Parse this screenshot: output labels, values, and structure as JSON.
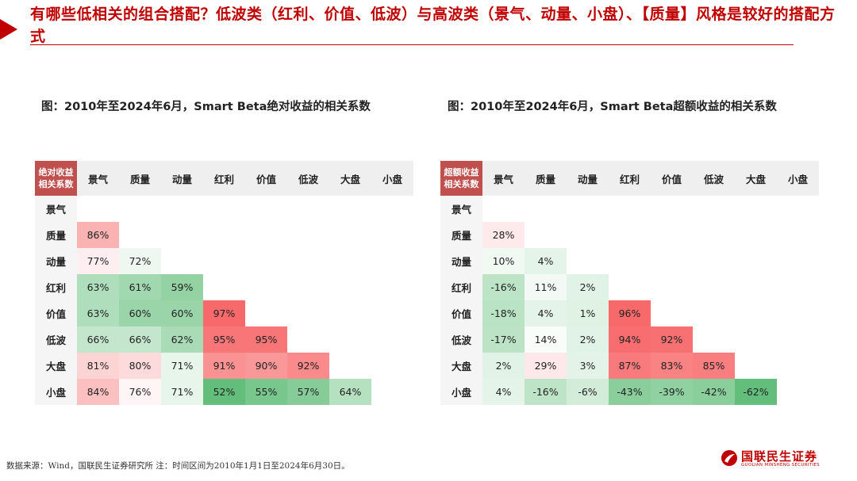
{
  "headline": "有哪些低相关的组合搭配？低波类（红利、价值、低波）与高波类（景气、动量、小盘）、【质量】风格是较好的搭配方式",
  "footer": {
    "source": "数据来源：Wind，国联民生证券研究所 注：时间区间为2010年1月1日至2024年6月30日。",
    "logo_cn": "国联民生证券",
    "logo_en": "GUOLIAN MINSHENG SECURITIES",
    "logo_icon": "company-logo-icon"
  },
  "colors": {
    "accent": "#c00000",
    "header_corner": "#c0504d",
    "high_positive": "#f8696b",
    "low": "#63be7b",
    "neutral": "#ffffff"
  },
  "chart_data": [
    {
      "type": "heatmap",
      "title": "图：2010年至2024年6月，Smart Beta绝对收益的相关系数",
      "corner_label": [
        "绝对收益",
        "相关系数"
      ],
      "columns": [
        "景气",
        "质量",
        "动量",
        "红利",
        "价值",
        "低波",
        "大盘",
        "小盘"
      ],
      "rows": [
        "景气",
        "质量",
        "动量",
        "红利",
        "价值",
        "低波",
        "大盘",
        "小盘"
      ],
      "color_scale": {
        "min": 52,
        "max": 97
      },
      "values": [
        [],
        [
          86
        ],
        [
          77,
          72
        ],
        [
          63,
          61,
          59
        ],
        [
          63,
          60,
          60,
          97
        ],
        [
          66,
          66,
          62,
          95,
          95
        ],
        [
          81,
          80,
          71,
          91,
          90,
          92
        ],
        [
          84,
          76,
          71,
          52,
          55,
          57,
          64
        ]
      ],
      "unit": "%"
    },
    {
      "type": "heatmap",
      "title": "图：2010年至2024年6月，Smart Beta超额收益的相关系数",
      "corner_label": [
        "超额收益",
        "相关系数"
      ],
      "columns": [
        "景气",
        "质量",
        "动量",
        "红利",
        "价值",
        "低波",
        "大盘",
        "小盘"
      ],
      "rows": [
        "景气",
        "质量",
        "动量",
        "红利",
        "价值",
        "低波",
        "大盘",
        "小盘"
      ],
      "color_scale": {
        "min": -62,
        "max": 96
      },
      "values": [
        [],
        [
          28
        ],
        [
          10,
          4
        ],
        [
          -16,
          11,
          2
        ],
        [
          -18,
          4,
          1,
          96
        ],
        [
          -17,
          14,
          2,
          94,
          92
        ],
        [
          2,
          29,
          3,
          87,
          83,
          85
        ],
        [
          4,
          -16,
          -6,
          -43,
          -39,
          -42,
          -62
        ]
      ],
      "unit": "%"
    }
  ]
}
